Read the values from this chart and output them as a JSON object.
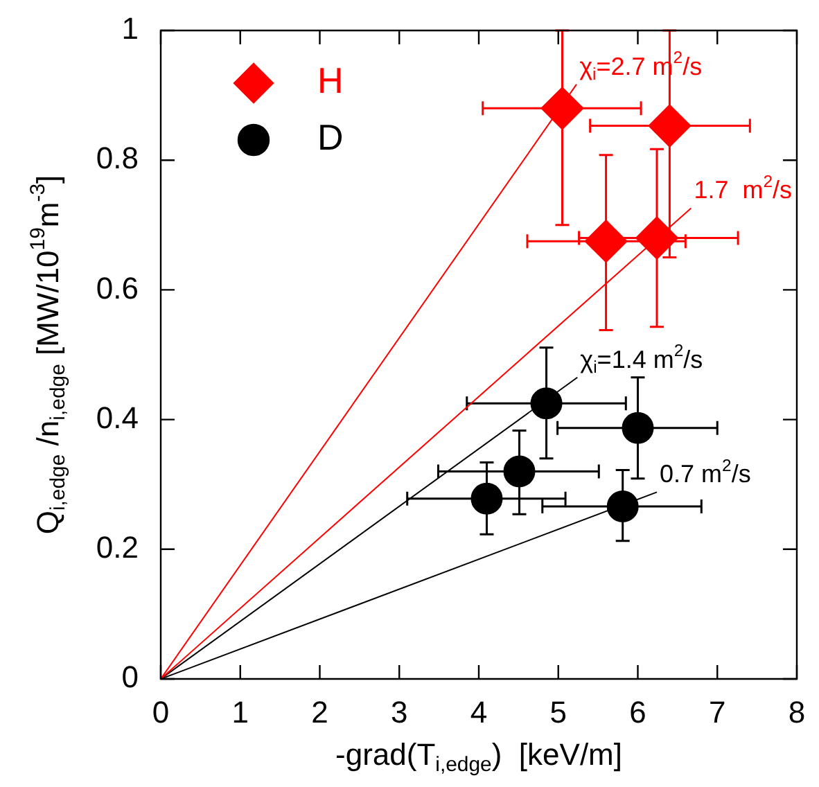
{
  "chart_data": {
    "type": "scatter",
    "xlabel": "-grad(T$_{i,edge}$)  [keV/m]",
    "ylabel": "Q$_{i,edge}$ /n$_{i,edge}$ [MW/10$^{19}$m$^{-3}$]",
    "xlim": [
      0,
      8
    ],
    "xticks": [
      0,
      1,
      2,
      3,
      4,
      5,
      6,
      7,
      8
    ],
    "ylim": [
      0,
      1
    ],
    "yticks": [
      0,
      0.2,
      0.4,
      0.6,
      0.8,
      1
    ],
    "grid": false,
    "legend": "top left",
    "series": [
      {
        "name": "H",
        "type": "scatter",
        "marker": "diamond",
        "color": "#ff0000",
        "x": [
          5.05,
          6.4,
          5.6,
          6.24
        ],
        "values": [
          0.88,
          0.853,
          0.675,
          0.68
        ],
        "errors": [
          [
            0.7,
            1
          ],
          [
            0.65,
            1
          ],
          [
            0.538,
            0.808
          ],
          [
            0.543,
            0.817
          ]
        ],
        "xerrors": [
          [
            4.05,
            6.04
          ],
          [
            5.4,
            7.41
          ],
          [
            4.61,
            6.6
          ],
          [
            5.26,
            7.26
          ]
        ]
      },
      {
        "name": "D",
        "type": "scatter",
        "marker": "circle",
        "color": "#000000",
        "x": [
          4.85,
          6.0,
          4.51,
          4.1,
          5.81
        ],
        "values": [
          0.425,
          0.387,
          0.32,
          0.278,
          0.266
        ],
        "errors": [
          [
            0.34,
            0.511
          ],
          [
            0.309,
            0.465
          ],
          [
            0.254,
            0.383
          ],
          [
            0.223,
            0.334
          ],
          [
            0.213,
            0.322
          ]
        ],
        "xerrors": [
          [
            3.85,
            5.85
          ],
          [
            4.99,
            7.0
          ],
          [
            3.49,
            5.51
          ],
          [
            3.1,
            5.09
          ],
          [
            4.8,
            6.8
          ]
        ]
      },
      {
        "type": "line",
        "marker": "none",
        "color": "#ff0000",
        "x": [
          0,
          5.23
        ],
        "values": [
          0,
          0.917
        ]
      },
      {
        "type": "line",
        "marker": "none",
        "color": "#ff0000",
        "x": [
          0,
          6.67
        ],
        "values": [
          0,
          0.726
        ]
      },
      {
        "type": "line",
        "marker": "none",
        "color": "#000000",
        "x": [
          0,
          5.24
        ],
        "values": [
          0,
          0.465
        ]
      },
      {
        "type": "line",
        "marker": "none",
        "color": "#000000",
        "x": [
          0,
          6.24
        ],
        "values": [
          0,
          0.288
        ]
      }
    ],
    "annotations": [
      {
        "text": "χ$_{i}$=2.7 m$^{2}$/s",
        "x": 5.23,
        "y": 0.917
      },
      {
        "text": "1.7  m$^{2}$/s",
        "x": 6.67,
        "y": 0.726
      },
      {
        "text": "χ$_{i}$=1.4 m$^{2}$/s",
        "x": 5.24,
        "y": 0.465
      },
      {
        "text": "0.7 m$^{2}$/s",
        "x": 6.24,
        "y": 0.288
      }
    ]
  }
}
